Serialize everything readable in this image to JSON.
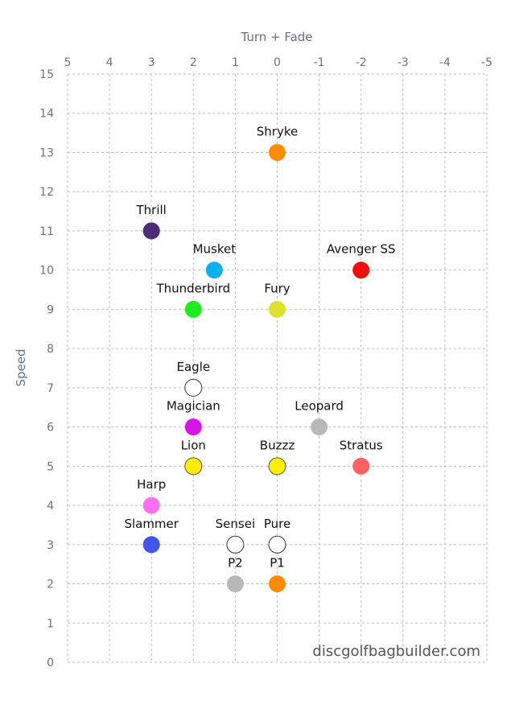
{
  "chart_data": {
    "type": "scatter",
    "xlabel": "Turn + Fade",
    "ylabel": "Speed",
    "xlim": [
      5,
      -5
    ],
    "ylim": [
      0,
      15
    ],
    "x_ticks": [
      "5",
      "4",
      "3",
      "2",
      "1",
      "0",
      "-1",
      "-2",
      "-3",
      "-4",
      "-5"
    ],
    "y_ticks": [
      "0",
      "1",
      "2",
      "3",
      "4",
      "5",
      "6",
      "7",
      "8",
      "9",
      "10",
      "11",
      "12",
      "13",
      "14",
      "15"
    ],
    "grid": true,
    "points": [
      {
        "name": "Shryke",
        "x": 0,
        "y": 13,
        "color": "#ff8c00"
      },
      {
        "name": "Thrill",
        "x": 3,
        "y": 11,
        "color": "#4b2c78"
      },
      {
        "name": "Musket",
        "x": 1.5,
        "y": 10,
        "color": "#0ab0f0"
      },
      {
        "name": "Avenger SS",
        "x": -2,
        "y": 10,
        "color": "#f20c0c"
      },
      {
        "name": "Thunderbird",
        "x": 2,
        "y": 9,
        "color": "#1eea1e"
      },
      {
        "name": "Fury",
        "x": 0,
        "y": 9,
        "color": "#dce030"
      },
      {
        "name": "Eagle",
        "x": 2,
        "y": 7,
        "color": "#ffffff"
      },
      {
        "name": "Magician",
        "x": 2,
        "y": 6,
        "color": "#d714e8"
      },
      {
        "name": "Leopard",
        "x": -1,
        "y": 6,
        "color": "#b8b8b8"
      },
      {
        "name": "Lion",
        "x": 2,
        "y": 5,
        "color": "#ffee00"
      },
      {
        "name": "Buzzz",
        "x": 0,
        "y": 5,
        "color": "#ffee00"
      },
      {
        "name": "Stratus",
        "x": -2,
        "y": 5,
        "color": "#ff6262"
      },
      {
        "name": "Harp",
        "x": 3,
        "y": 4,
        "color": "#ff70f0"
      },
      {
        "name": "Slammer",
        "x": 3,
        "y": 3,
        "color": "#4455ee"
      },
      {
        "name": "Sensei",
        "x": 1,
        "y": 3,
        "color": "#ffffff"
      },
      {
        "name": "Pure",
        "x": 0,
        "y": 3,
        "color": "#ffffff"
      },
      {
        "name": "P2",
        "x": 1,
        "y": 2,
        "color": "#b8b8b8"
      },
      {
        "name": "P1",
        "x": 0,
        "y": 2,
        "color": "#ff8c00"
      }
    ]
  },
  "watermark": "discgolfbagbuilder.com"
}
